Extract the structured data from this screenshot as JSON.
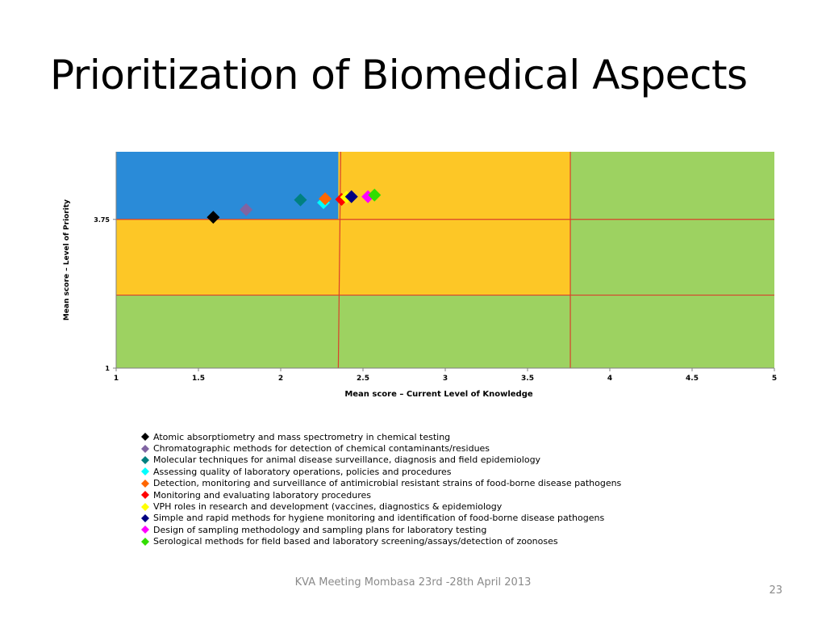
{
  "slide": {
    "title": "Prioritization of Biomedical Aspects",
    "footer": "KVA Meeting Mombasa 23rd -28th April 2013",
    "page_number": "23"
  },
  "chart_data": {
    "type": "scatter",
    "xlabel": "Mean score – Current Level of Knowledge",
    "ylabel": "Mean score – Level of Priority",
    "xlim": [
      1,
      5
    ],
    "ylim": [
      1,
      5
    ],
    "x_ticks": [
      "1",
      "1.5",
      "2",
      "2.5",
      "3",
      "3.5",
      "4",
      "4.5",
      "5"
    ],
    "y_ticks": [
      "1",
      "3.75"
    ],
    "grid": false,
    "legend_position": "bottom",
    "zone_colors": {
      "blue": "#2a8bd8",
      "yellow": "#fdc726",
      "green": "#9dd261",
      "line": "#d9402b"
    },
    "series": [
      {
        "name": "Atomic absorptiometry and mass spectrometry in chemical testing",
        "color": "#000000",
        "x": 1.59,
        "y": 3.79
      },
      {
        "name": "Chromatographic methods for detection of chemical contaminants/residues",
        "color": "#8064a2",
        "x": 1.79,
        "y": 3.93
      },
      {
        "name": "Molecular techniques for animal disease surveillance, diagnosis and field epidemiology",
        "color": "#008080",
        "x": 2.12,
        "y": 4.11
      },
      {
        "name": "Assessing quality of laboratory operations, policies and procedures",
        "color": "#00ffff",
        "x": 2.26,
        "y": 4.06
      },
      {
        "name": "Detection, monitoring and surveillance of antimicrobial resistant strains of food-borne disease pathogens",
        "color": "#ff6600",
        "x": 2.27,
        "y": 4.13
      },
      {
        "name": "Monitoring and evaluating laboratory procedures",
        "color": "#ff0000",
        "x": 2.37,
        "y": 4.12
      },
      {
        "name": "VPH roles in research and development (vaccines, diagnostics & epidemiology",
        "color": "#ffff00",
        "x": 2.4,
        "y": 4.16
      },
      {
        "name": "Simple and rapid methods for hygiene monitoring and identification of food-borne disease pathogens",
        "color": "#000080",
        "x": 2.43,
        "y": 4.17
      },
      {
        "name": "Design of sampling methodology and sampling plans for laboratory testing",
        "color": "#ff00ff",
        "x": 2.53,
        "y": 4.17
      },
      {
        "name": "Serological methods for field based and laboratory screening/assays/detection of zoonoses",
        "color": "#33dd00",
        "x": 2.57,
        "y": 4.2
      }
    ]
  }
}
